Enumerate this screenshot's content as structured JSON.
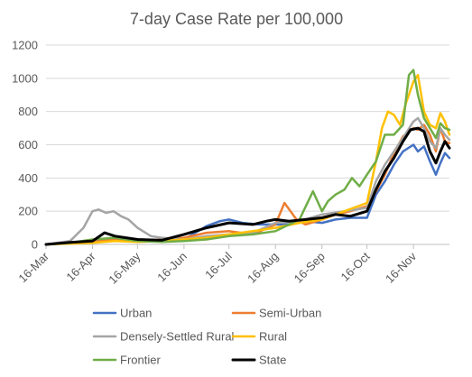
{
  "chart_data": {
    "type": "line",
    "title": "7-day Case Rate per 100,000",
    "xlabel": "",
    "ylabel": "",
    "ylim": [
      0,
      1200
    ],
    "yticks": [
      0,
      200,
      400,
      600,
      800,
      1000,
      1200
    ],
    "x_range": [
      "2020-03-16",
      "2020-12-10"
    ],
    "xticks": [
      {
        "date": "2020-03-16",
        "label": "16-Mar"
      },
      {
        "date": "2020-04-16",
        "label": "16-Apr"
      },
      {
        "date": "2020-05-16",
        "label": "16-May"
      },
      {
        "date": "2020-06-16",
        "label": "16-Jun"
      },
      {
        "date": "2020-07-16",
        "label": "16-Jul"
      },
      {
        "date": "2020-08-16",
        "label": "16-Aug"
      },
      {
        "date": "2020-09-16",
        "label": "16-Sep"
      },
      {
        "date": "2020-10-16",
        "label": "16-Oct"
      },
      {
        "date": "2020-11-16",
        "label": "16-Nov"
      }
    ],
    "grid": "horizontal",
    "legend": "bottom",
    "series": [
      {
        "name": "Urban",
        "color": "#4472C4",
        "width": 2.5,
        "x": [
          "2020-03-16",
          "2020-04-01",
          "2020-04-16",
          "2020-05-01",
          "2020-05-16",
          "2020-06-01",
          "2020-06-16",
          "2020-07-01",
          "2020-07-10",
          "2020-07-16",
          "2020-07-25",
          "2020-08-05",
          "2020-08-16",
          "2020-08-25",
          "2020-09-05",
          "2020-09-16",
          "2020-09-25",
          "2020-10-05",
          "2020-10-16",
          "2020-10-22",
          "2020-10-28",
          "2020-11-03",
          "2020-11-09",
          "2020-11-16",
          "2020-11-19",
          "2020-11-23",
          "2020-11-27",
          "2020-12-01",
          "2020-12-04",
          "2020-12-07",
          "2020-12-10"
        ],
        "y": [
          0,
          10,
          18,
          40,
          20,
          20,
          30,
          110,
          140,
          150,
          130,
          120,
          120,
          120,
          140,
          130,
          150,
          160,
          160,
          300,
          380,
          480,
          560,
          600,
          560,
          590,
          500,
          420,
          490,
          550,
          520
        ]
      },
      {
        "name": "Semi-Urban",
        "color": "#ED7D31",
        "width": 2.5,
        "x": [
          "2020-03-16",
          "2020-04-01",
          "2020-04-16",
          "2020-05-01",
          "2020-05-16",
          "2020-06-01",
          "2020-06-16",
          "2020-07-01",
          "2020-07-16",
          "2020-08-01",
          "2020-08-16",
          "2020-08-22",
          "2020-08-26",
          "2020-08-30",
          "2020-09-05",
          "2020-09-16",
          "2020-09-25",
          "2020-10-05",
          "2020-10-16",
          "2020-10-22",
          "2020-10-28",
          "2020-11-03",
          "2020-11-09",
          "2020-11-16",
          "2020-11-19",
          "2020-11-23",
          "2020-11-27",
          "2020-12-01",
          "2020-12-04",
          "2020-12-07",
          "2020-12-10"
        ],
        "y": [
          0,
          8,
          15,
          30,
          20,
          30,
          40,
          70,
          80,
          60,
          120,
          250,
          200,
          150,
          120,
          150,
          180,
          200,
          230,
          320,
          420,
          550,
          650,
          700,
          690,
          720,
          660,
          560,
          700,
          620,
          610
        ]
      },
      {
        "name": "Densely-Settled Rural",
        "color": "#A5A5A5",
        "width": 2.5,
        "x": [
          "2020-03-16",
          "2020-04-01",
          "2020-04-10",
          "2020-04-16",
          "2020-04-20",
          "2020-04-25",
          "2020-04-30",
          "2020-05-05",
          "2020-05-10",
          "2020-05-16",
          "2020-05-25",
          "2020-06-01",
          "2020-06-16",
          "2020-07-01",
          "2020-07-16",
          "2020-08-01",
          "2020-08-16",
          "2020-09-01",
          "2020-09-16",
          "2020-10-01",
          "2020-10-16",
          "2020-10-22",
          "2020-10-28",
          "2020-11-03",
          "2020-11-09",
          "2020-11-16",
          "2020-11-19",
          "2020-11-23",
          "2020-11-27",
          "2020-12-01",
          "2020-12-04",
          "2020-12-07",
          "2020-12-10"
        ],
        "y": [
          0,
          20,
          100,
          200,
          210,
          190,
          200,
          170,
          150,
          100,
          50,
          40,
          30,
          50,
          60,
          70,
          130,
          140,
          180,
          200,
          220,
          380,
          480,
          560,
          640,
          740,
          760,
          700,
          620,
          580,
          700,
          660,
          630
        ]
      },
      {
        "name": "Rural",
        "color": "#FFC000",
        "width": 2.5,
        "x": [
          "2020-03-16",
          "2020-04-01",
          "2020-04-16",
          "2020-05-01",
          "2020-05-16",
          "2020-06-01",
          "2020-06-16",
          "2020-07-01",
          "2020-07-16",
          "2020-08-01",
          "2020-08-16",
          "2020-09-01",
          "2020-09-16",
          "2020-10-01",
          "2020-10-16",
          "2020-10-22",
          "2020-10-26",
          "2020-10-30",
          "2020-11-03",
          "2020-11-07",
          "2020-11-11",
          "2020-11-16",
          "2020-11-19",
          "2020-11-23",
          "2020-11-27",
          "2020-12-01",
          "2020-12-04",
          "2020-12-07",
          "2020-12-10"
        ],
        "y": [
          0,
          5,
          10,
          20,
          15,
          20,
          30,
          40,
          60,
          80,
          100,
          130,
          150,
          200,
          250,
          500,
          700,
          800,
          780,
          720,
          850,
          980,
          1020,
          800,
          720,
          700,
          790,
          740,
          660
        ]
      },
      {
        "name": "Frontier",
        "color": "#70AD47",
        "width": 2.5,
        "x": [
          "2020-03-16",
          "2020-04-01",
          "2020-04-16",
          "2020-05-01",
          "2020-05-16",
          "2020-06-01",
          "2020-06-16",
          "2020-07-01",
          "2020-07-16",
          "2020-08-01",
          "2020-08-16",
          "2020-09-01",
          "2020-09-10",
          "2020-09-16",
          "2020-09-20",
          "2020-09-25",
          "2020-10-01",
          "2020-10-06",
          "2020-10-11",
          "2020-10-16",
          "2020-10-22",
          "2020-10-28",
          "2020-11-03",
          "2020-11-09",
          "2020-11-13",
          "2020-11-16",
          "2020-11-19",
          "2020-11-23",
          "2020-11-27",
          "2020-12-01",
          "2020-12-04",
          "2020-12-07",
          "2020-12-10"
        ],
        "y": [
          0,
          10,
          30,
          40,
          20,
          15,
          20,
          30,
          50,
          60,
          80,
          150,
          320,
          200,
          260,
          300,
          330,
          400,
          350,
          420,
          500,
          660,
          660,
          720,
          1020,
          1050,
          900,
          760,
          700,
          640,
          730,
          700,
          690
        ]
      },
      {
        "name": "State",
        "color": "#000000",
        "width": 3,
        "x": [
          "2020-03-16",
          "2020-04-01",
          "2020-04-16",
          "2020-04-24",
          "2020-05-01",
          "2020-05-16",
          "2020-06-01",
          "2020-06-16",
          "2020-07-01",
          "2020-07-16",
          "2020-08-01",
          "2020-08-10",
          "2020-08-16",
          "2020-08-25",
          "2020-09-05",
          "2020-09-16",
          "2020-09-25",
          "2020-10-05",
          "2020-10-16",
          "2020-10-22",
          "2020-10-28",
          "2020-11-03",
          "2020-11-09",
          "2020-11-14",
          "2020-11-19",
          "2020-11-23",
          "2020-11-27",
          "2020-12-01",
          "2020-12-04",
          "2020-12-07",
          "2020-12-10"
        ],
        "y": [
          0,
          12,
          20,
          70,
          50,
          30,
          25,
          60,
          100,
          130,
          120,
          140,
          150,
          140,
          150,
          160,
          180,
          170,
          200,
          330,
          440,
          520,
          620,
          690,
          700,
          680,
          560,
          490,
          560,
          620,
          580
        ]
      }
    ]
  }
}
